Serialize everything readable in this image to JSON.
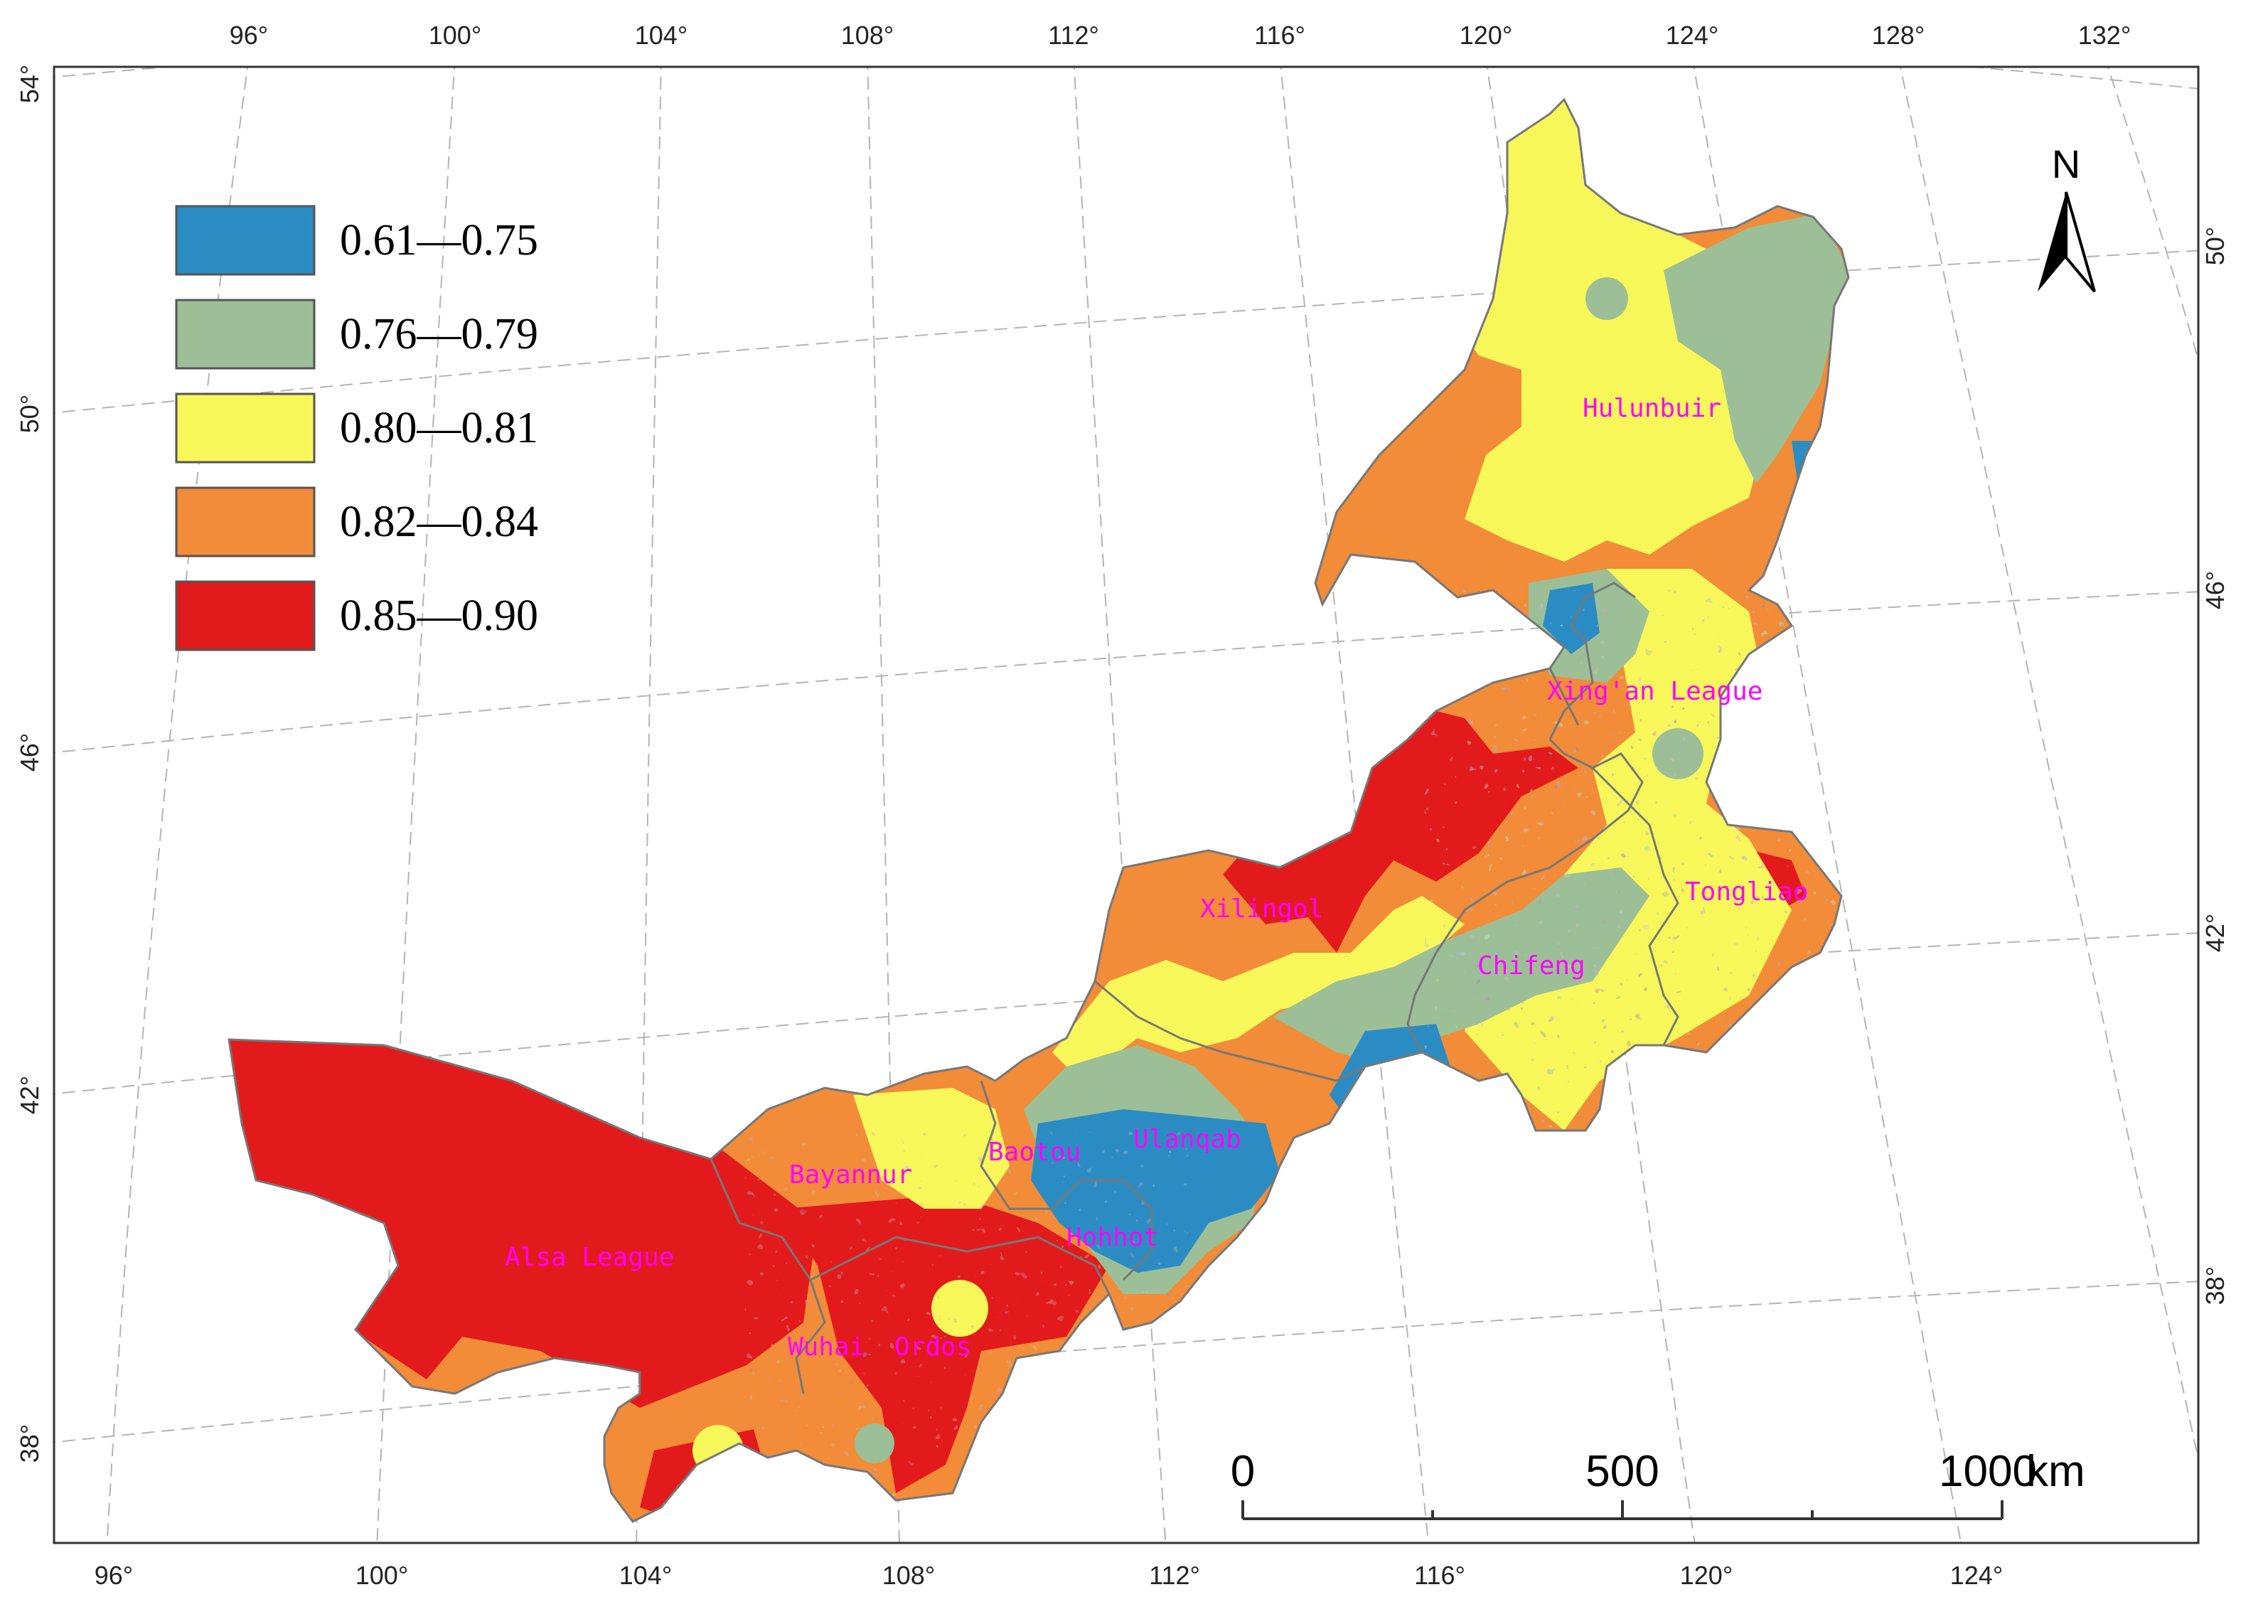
{
  "legend": {
    "items": [
      {
        "label": "0.61—0.75",
        "color": "#2b8cc4"
      },
      {
        "label": "0.76—0.79",
        "color": "#9dbf97"
      },
      {
        "label": "0.80—0.81",
        "color": "#f8f75a"
      },
      {
        "label": "0.82—0.84",
        "color": "#f28c38"
      },
      {
        "label": "0.85—0.90",
        "color": "#e31a1c"
      }
    ]
  },
  "graticule": {
    "top_lon": [
      "96°",
      "100°",
      "104°",
      "108°",
      "112°",
      "116°",
      "120°",
      "124°",
      "128°",
      "132°"
    ],
    "bottom_lon": [
      "96°",
      "100°",
      "104°",
      "108°",
      "112°",
      "116°",
      "120°",
      "124°"
    ],
    "left_lat": [
      "54°",
      "50°",
      "46°",
      "42°",
      "38°"
    ],
    "right_lat": [
      "50°",
      "46°",
      "42°",
      "38°"
    ]
  },
  "places": [
    {
      "name": "Hulunbuir"
    },
    {
      "name": "Xing'an League"
    },
    {
      "name": "Tongliao"
    },
    {
      "name": "Chifeng"
    },
    {
      "name": "Xilingol"
    },
    {
      "name": "Ulanqab"
    },
    {
      "name": "Baotou"
    },
    {
      "name": "Hohhot"
    },
    {
      "name": "Bayannur"
    },
    {
      "name": "Alsa League"
    },
    {
      "name": "Wuhai"
    },
    {
      "name": "Ordos"
    }
  ],
  "north_arrow": {
    "label": "N",
    "icon": "north-arrow-icon"
  },
  "scale_bar": {
    "ticks": [
      "0",
      "500",
      "1000"
    ],
    "unit": "km"
  },
  "colors": {
    "boundary": "#777777",
    "graticule": "#b4b4b4",
    "label": "#ff00ff"
  }
}
